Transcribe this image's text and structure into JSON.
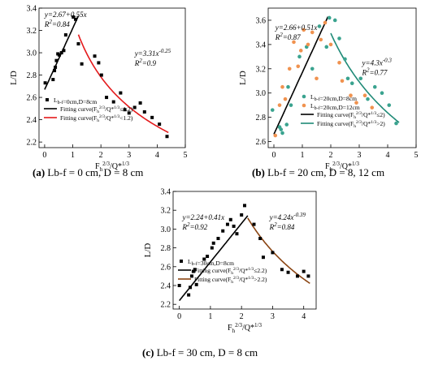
{
  "chart_data": [
    {
      "id": "a",
      "type": "scatter",
      "caption": {
        "tag": "(a)",
        "text": "Lb-f = 0 cm, D = 8 cm"
      },
      "xlabel": "Fh2/3/Q*1/3",
      "ylabel": "L/D",
      "xlim": [
        -0.2,
        5
      ],
      "ylim": [
        2.15,
        3.4
      ],
      "xticks": [
        0,
        1,
        2,
        3,
        4,
        5
      ],
      "yticks": [
        2.2,
        2.4,
        2.6,
        2.8,
        3.0,
        3.2,
        3.4
      ],
      "grid": false,
      "legend_position": "bottom-left",
      "series": [
        {
          "name": "Lb-f=0cm,D=8cm",
          "marker": "square",
          "color": "#000000",
          "points": [
            [
              0.02,
              2.73
            ],
            [
              0.3,
              2.76
            ],
            [
              0.35,
              2.84
            ],
            [
              0.38,
              2.87
            ],
            [
              0.42,
              2.93
            ],
            [
              0.47,
              2.99
            ],
            [
              0.52,
              2.98
            ],
            [
              0.6,
              3.0
            ],
            [
              0.68,
              3.02
            ],
            [
              0.75,
              3.16
            ],
            [
              1.02,
              3.32
            ],
            [
              1.1,
              3.3
            ],
            [
              1.2,
              3.08
            ],
            [
              1.32,
              2.9
            ],
            [
              1.78,
              2.97
            ],
            [
              1.92,
              2.91
            ],
            [
              2.02,
              2.8
            ],
            [
              2.2,
              2.6
            ],
            [
              2.45,
              2.56
            ],
            [
              2.7,
              2.64
            ],
            [
              2.85,
              2.49
            ],
            [
              3.0,
              2.46
            ],
            [
              3.2,
              2.51
            ],
            [
              3.4,
              2.55
            ],
            [
              3.55,
              2.47
            ],
            [
              3.82,
              2.42
            ],
            [
              4.08,
              2.36
            ],
            [
              4.35,
              2.25
            ]
          ]
        }
      ],
      "fits": [
        {
          "name": "Fitting curve(Fh2/3/Q*1/3≤1.2)",
          "color": "#000000",
          "kind": "linear",
          "a": 2.67,
          "b": 0.55,
          "x_range": [
            0,
            1.2
          ]
        },
        {
          "name": "Fitting curve(Fh2/3/Q*1/3<1.2)",
          "color": "#e41a1c",
          "kind": "power",
          "a": 3.31,
          "b": -0.25,
          "x_range": [
            1.2,
            4.4
          ]
        }
      ],
      "annotations": [
        {
          "eq": "y=2.67+0.55x",
          "r2": "R2=0.84",
          "x": 0.0,
          "y": 3.32,
          "color": "#000000"
        },
        {
          "eq": "y=3.31x-0.25",
          "r2": "R2=0.9",
          "x": 3.2,
          "y": 2.97,
          "color": "#e41a1c"
        }
      ]
    },
    {
      "id": "b",
      "type": "scatter",
      "caption": {
        "tag": "(b)",
        "text": "Lb-f = 20 cm, D = 8, 12 cm"
      },
      "xlabel": "Fh2/3/Q*1/3",
      "ylabel": "L/D",
      "xlim": [
        -0.2,
        5
      ],
      "ylim": [
        2.55,
        3.7
      ],
      "xticks": [
        0,
        1,
        2,
        3,
        4,
        5
      ],
      "yticks": [
        2.6,
        2.8,
        3.0,
        3.2,
        3.4,
        3.6
      ],
      "grid": false,
      "legend_position": "bottom-center",
      "series": [
        {
          "name": "Lb-f=20cm,D=8cm",
          "marker": "circle",
          "color": "#3aa38f",
          "points": [
            [
              -0.05,
              2.86
            ],
            [
              0.2,
              2.72
            ],
            [
              0.25,
              2.7
            ],
            [
              0.3,
              2.67
            ],
            [
              0.45,
              2.74
            ],
            [
              0.5,
              3.05
            ],
            [
              0.6,
              2.9
            ],
            [
              0.9,
              3.3
            ],
            [
              1.15,
              3.38
            ],
            [
              1.35,
              3.2
            ],
            [
              1.6,
              3.55
            ],
            [
              1.85,
              3.38
            ],
            [
              1.95,
              3.62
            ],
            [
              2.15,
              3.6
            ],
            [
              2.3,
              3.45
            ],
            [
              2.5,
              3.28
            ],
            [
              2.6,
              3.12
            ],
            [
              2.75,
              3.08
            ],
            [
              3.05,
              3.12
            ],
            [
              3.3,
              2.95
            ],
            [
              3.55,
              3.05
            ],
            [
              3.8,
              3.0
            ],
            [
              4.05,
              2.9
            ],
            [
              4.3,
              2.75
            ]
          ]
        },
        {
          "name": "Lb-f=20cm,D=12cm",
          "marker": "circle",
          "color": "#f0924f",
          "points": [
            [
              0.05,
              2.65
            ],
            [
              0.2,
              2.9
            ],
            [
              0.3,
              3.05
            ],
            [
              0.4,
              2.95
            ],
            [
              0.55,
              3.2
            ],
            [
              0.7,
              3.42
            ],
            [
              0.85,
              3.22
            ],
            [
              0.95,
              3.35
            ],
            [
              1.05,
              3.52
            ],
            [
              1.2,
              3.4
            ],
            [
              1.35,
              3.5
            ],
            [
              1.5,
              3.12
            ],
            [
              1.65,
              3.44
            ],
            [
              1.8,
              3.58
            ],
            [
              2.0,
              3.4
            ],
            [
              2.3,
              3.25
            ],
            [
              2.4,
              3.1
            ],
            [
              2.7,
              2.98
            ],
            [
              2.9,
              2.92
            ],
            [
              3.2,
              2.98
            ],
            [
              3.45,
              2.88
            ]
          ]
        }
      ],
      "fits": [
        {
          "name": "Fitting curve(Fh2/3/Q*1/3≤2)",
          "color": "#000000",
          "kind": "linear",
          "a": 2.66,
          "b": 0.51,
          "x_range": [
            0,
            1.9
          ]
        },
        {
          "name": "Fitting curve(Fh2/3/Q*1/3>2)",
          "color": "#1f8a77",
          "kind": "power",
          "a": 4.3,
          "b": -0.3,
          "x_range": [
            2.0,
            4.4
          ]
        }
      ],
      "annotations": [
        {
          "eq": "y=2.66+0.51x",
          "r2": "R2=0.87",
          "x": 0.05,
          "y": 3.52,
          "color": "#000000"
        },
        {
          "eq": "y=4.3x-0.3",
          "r2": "R2=0.77",
          "x": 3.1,
          "y": 3.23,
          "color": "#1f8a77"
        }
      ]
    },
    {
      "id": "c",
      "type": "scatter",
      "caption": {
        "tag": "(c)",
        "text": "Lb-f = 30 cm, D = 8 cm"
      },
      "xlabel": "Fh2/3/Q*1/3",
      "ylabel": "L/D",
      "xlim": [
        -0.2,
        4.4
      ],
      "ylim": [
        2.15,
        3.4
      ],
      "xticks": [
        0,
        1,
        2,
        3,
        4
      ],
      "yticks": [
        2.2,
        2.4,
        2.6,
        2.8,
        3.0,
        3.2,
        3.4
      ],
      "grid": false,
      "legend_position": "bottom-left",
      "series": [
        {
          "name": "Lb-f=30cm,D=8cm",
          "marker": "square",
          "color": "#000000",
          "points": [
            [
              0.0,
              2.4
            ],
            [
              0.3,
              2.3
            ],
            [
              0.35,
              2.38
            ],
            [
              0.4,
              2.5
            ],
            [
              0.45,
              2.55
            ],
            [
              0.5,
              2.57
            ],
            [
              0.55,
              2.41
            ],
            [
              0.8,
              2.68
            ],
            [
              0.9,
              2.71
            ],
            [
              1.05,
              2.8
            ],
            [
              1.1,
              2.85
            ],
            [
              1.25,
              2.9
            ],
            [
              1.4,
              2.98
            ],
            [
              1.55,
              3.05
            ],
            [
              1.65,
              3.1
            ],
            [
              1.75,
              3.03
            ],
            [
              1.85,
              2.95
            ],
            [
              2.0,
              3.15
            ],
            [
              2.1,
              3.25
            ],
            [
              2.4,
              3.05
            ],
            [
              2.6,
              2.9
            ],
            [
              2.7,
              2.7
            ],
            [
              3.0,
              2.75
            ],
            [
              3.3,
              2.57
            ],
            [
              3.5,
              2.54
            ],
            [
              3.8,
              2.5
            ],
            [
              4.0,
              2.55
            ],
            [
              4.15,
              2.5
            ]
          ]
        }
      ],
      "fits": [
        {
          "name": "Fitting curve(Fh2/3/Q*1/3≤2.2)",
          "color": "#000000",
          "kind": "linear",
          "a": 2.24,
          "b": 0.41,
          "x_range": [
            0,
            2.2
          ]
        },
        {
          "name": "Fitting curve(Fh2/3/Q*1/3>2.2)",
          "color": "#8b4513",
          "kind": "power",
          "a": 4.24,
          "b": -0.39,
          "x_range": [
            2.2,
            4.2
          ]
        }
      ],
      "annotations": [
        {
          "eq": "y=2.24+0.41x",
          "r2": "R2=0.92",
          "x": 0.1,
          "y": 3.1,
          "color": "#000000"
        },
        {
          "eq": "y=4.24x-0.39",
          "r2": "R2=0.84",
          "x": 2.9,
          "y": 3.1,
          "color": "#8b4513"
        }
      ]
    }
  ]
}
